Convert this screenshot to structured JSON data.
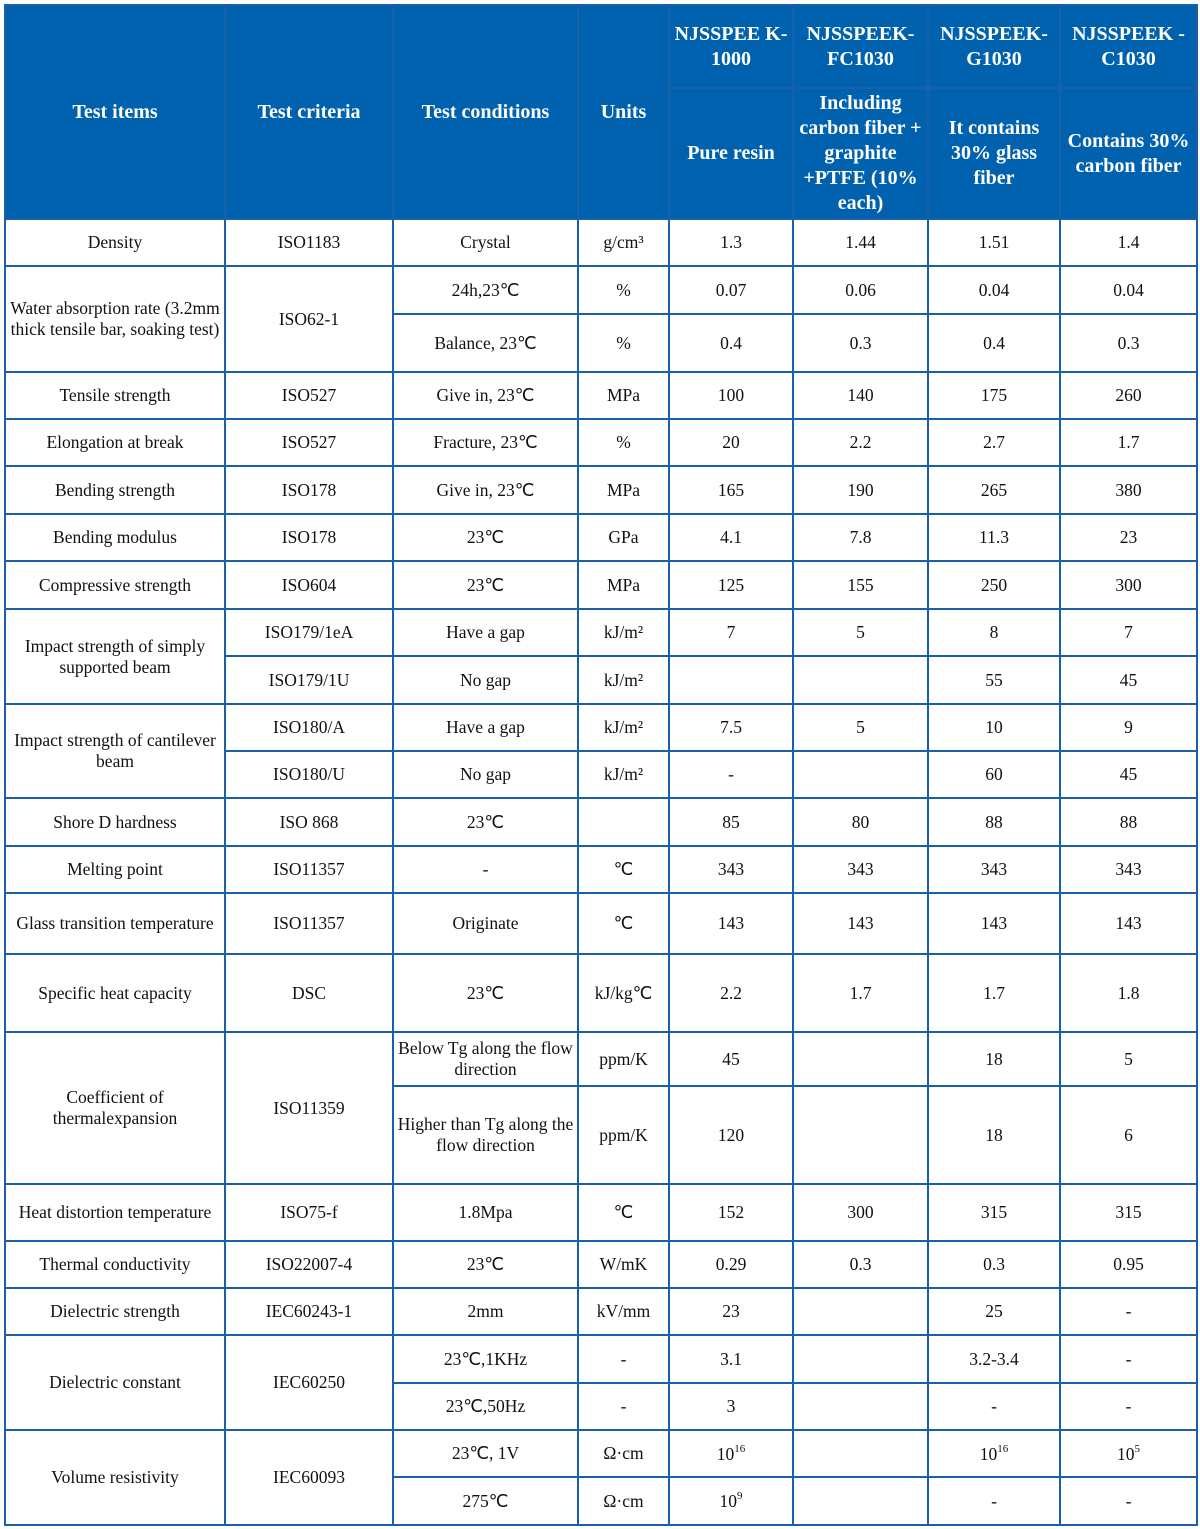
{
  "header": {
    "test_items": "Test items",
    "test_criteria": "Test criteria",
    "test_conditions": "Test conditions",
    "units": "Units",
    "products": [
      {
        "name": "NJSSPEEK-1000",
        "name_display": "NJSSPEE K-1000",
        "description": "Pure resin"
      },
      {
        "name": "NJSSPEEK-FC1030",
        "name_display": "NJSSPEEK- FC1030",
        "description": "Including carbon fiber + graphite +PTFE (10% each)"
      },
      {
        "name": "NJSSPEEK-G1030",
        "name_display": "NJSSPEEK- G1030",
        "description": "It contains 30% glass fiber"
      },
      {
        "name": "NJSSPEEK-C1030",
        "name_display": "NJSSPEEK -C1030",
        "description": "Contains 30% carbon fiber"
      }
    ]
  },
  "rows": [
    {
      "cells": [
        {
          "t": "Density"
        },
        {
          "t": "ISO1183"
        },
        {
          "t": "Crystal"
        },
        {
          "t": "g/cm³"
        },
        {
          "t": "1.3"
        },
        {
          "t": "1.44"
        },
        {
          "t": "1.51"
        },
        {
          "t": "1.4"
        }
      ]
    },
    {
      "cells": [
        {
          "t": "Water absorption rate (3.2mm thick tensile bar, soaking test)",
          "rs": 2
        },
        {
          "t": "ISO62-1",
          "rs": 2
        },
        {
          "t": "24h,23℃"
        },
        {
          "t": "%"
        },
        {
          "t": "0.07"
        },
        {
          "t": "0.06"
        },
        {
          "t": "0.04"
        },
        {
          "t": "0.04"
        }
      ]
    },
    {
      "cells": [
        {
          "t": "Balance, 23℃"
        },
        {
          "t": "%"
        },
        {
          "t": "0.4"
        },
        {
          "t": "0.3"
        },
        {
          "t": "0.4"
        },
        {
          "t": "0.3"
        }
      ]
    },
    {
      "cells": [
        {
          "t": "Tensile strength"
        },
        {
          "t": "ISO527"
        },
        {
          "t": "Give in, 23℃"
        },
        {
          "t": "MPa"
        },
        {
          "t": "100"
        },
        {
          "t": "140"
        },
        {
          "t": "175"
        },
        {
          "t": "260"
        }
      ]
    },
    {
      "cells": [
        {
          "t": "Elongation at break"
        },
        {
          "t": "ISO527"
        },
        {
          "t": "Fracture, 23℃"
        },
        {
          "t": "%"
        },
        {
          "t": "20"
        },
        {
          "t": "2.2"
        },
        {
          "t": "2.7"
        },
        {
          "t": "1.7"
        }
      ]
    },
    {
      "cells": [
        {
          "t": "Bending strength"
        },
        {
          "t": "ISO178"
        },
        {
          "t": "Give in, 23℃"
        },
        {
          "t": "MPa"
        },
        {
          "t": "165"
        },
        {
          "t": "190"
        },
        {
          "t": "265"
        },
        {
          "t": "380"
        }
      ]
    },
    {
      "cells": [
        {
          "t": "Bending modulus"
        },
        {
          "t": "ISO178"
        },
        {
          "t": "23℃"
        },
        {
          "t": "GPa"
        },
        {
          "t": "4.1"
        },
        {
          "t": "7.8"
        },
        {
          "t": "11.3"
        },
        {
          "t": "23"
        }
      ]
    },
    {
      "cells": [
        {
          "t": "Compressive strength"
        },
        {
          "t": "ISO604"
        },
        {
          "t": "23℃"
        },
        {
          "t": "MPa"
        },
        {
          "t": "125"
        },
        {
          "t": "155"
        },
        {
          "t": "250"
        },
        {
          "t": "300"
        }
      ]
    },
    {
      "cells": [
        {
          "t": "Impact strength of simply supported beam",
          "rs": 2
        },
        {
          "t": "ISO179/1eA"
        },
        {
          "t": "Have a gap"
        },
        {
          "t": "kJ/m²"
        },
        {
          "t": "7"
        },
        {
          "t": "5"
        },
        {
          "t": "8"
        },
        {
          "t": "7"
        }
      ]
    },
    {
      "cells": [
        {
          "t": "ISO179/1U"
        },
        {
          "t": "No gap"
        },
        {
          "t": "kJ/m²"
        },
        {
          "t": ""
        },
        {
          "t": ""
        },
        {
          "t": "55"
        },
        {
          "t": "45"
        }
      ]
    },
    {
      "cells": [
        {
          "t": "Impact strength of cantilever beam",
          "rs": 2
        },
        {
          "t": "ISO180/A"
        },
        {
          "t": "Have a gap"
        },
        {
          "t": "kJ/m²"
        },
        {
          "t": "7.5"
        },
        {
          "t": "5"
        },
        {
          "t": "10"
        },
        {
          "t": "9"
        }
      ]
    },
    {
      "cells": [
        {
          "t": "ISO180/U"
        },
        {
          "t": "No gap"
        },
        {
          "t": "kJ/m²"
        },
        {
          "t": "-"
        },
        {
          "t": ""
        },
        {
          "t": "60"
        },
        {
          "t": "45"
        }
      ]
    },
    {
      "cells": [
        {
          "t": "Shore D hardness"
        },
        {
          "t": "ISO 868"
        },
        {
          "t": "23℃"
        },
        {
          "t": ""
        },
        {
          "t": "85"
        },
        {
          "t": "80"
        },
        {
          "t": "88"
        },
        {
          "t": "88"
        }
      ]
    },
    {
      "cells": [
        {
          "t": "Melting point"
        },
        {
          "t": "ISO11357"
        },
        {
          "t": "-"
        },
        {
          "t": "℃"
        },
        {
          "t": "343"
        },
        {
          "t": "343"
        },
        {
          "t": "343"
        },
        {
          "t": "343"
        }
      ]
    },
    {
      "cells": [
        {
          "t": "Glass transition temperature"
        },
        {
          "t": "ISO11357"
        },
        {
          "t": "Originate"
        },
        {
          "t": "℃"
        },
        {
          "t": "143"
        },
        {
          "t": "143"
        },
        {
          "t": "143"
        },
        {
          "t": "143"
        }
      ]
    },
    {
      "cells": [
        {
          "t": "Specific heat capacity"
        },
        {
          "t": "DSC"
        },
        {
          "t": "23℃"
        },
        {
          "t": "kJ/kg℃"
        },
        {
          "t": "2.2"
        },
        {
          "t": "1.7"
        },
        {
          "t": "1.7"
        },
        {
          "t": "1.8"
        }
      ]
    },
    {
      "cells": [
        {
          "t": "Coefficient of thermalexpansion",
          "rs": 2
        },
        {
          "t": "ISO11359",
          "rs": 2
        },
        {
          "t": "Below Tg along the flow direction"
        },
        {
          "t": "ppm/K"
        },
        {
          "t": "45"
        },
        {
          "t": ""
        },
        {
          "t": "18"
        },
        {
          "t": "5"
        }
      ]
    },
    {
      "cells": [
        {
          "t": "Higher than Tg along the flow direction"
        },
        {
          "t": "ppm/K"
        },
        {
          "t": "120"
        },
        {
          "t": ""
        },
        {
          "t": "18"
        },
        {
          "t": "6"
        }
      ]
    },
    {
      "cells": [
        {
          "t": "Heat distortion temperature"
        },
        {
          "t": "ISO75-f"
        },
        {
          "t": "1.8Mpa"
        },
        {
          "t": "℃"
        },
        {
          "t": "152"
        },
        {
          "t": "300"
        },
        {
          "t": "315"
        },
        {
          "t": "315"
        }
      ]
    },
    {
      "cells": [
        {
          "t": "Thermal conductivity"
        },
        {
          "t": "ISO22007-4"
        },
        {
          "t": "23℃"
        },
        {
          "t": "W/mK"
        },
        {
          "t": "0.29"
        },
        {
          "t": "0.3"
        },
        {
          "t": "0.3"
        },
        {
          "t": "0.95"
        }
      ]
    },
    {
      "cells": [
        {
          "t": "Dielectric strength"
        },
        {
          "t": "IEC60243-1"
        },
        {
          "t": "2mm"
        },
        {
          "t": "kV/mm"
        },
        {
          "t": "23"
        },
        {
          "t": ""
        },
        {
          "t": "25"
        },
        {
          "t": "-"
        }
      ]
    },
    {
      "cells": [
        {
          "t": "Dielectric constant",
          "rs": 2
        },
        {
          "t": "IEC60250",
          "rs": 2
        },
        {
          "t": "23℃,1KHz"
        },
        {
          "t": "-"
        },
        {
          "t": "3.1"
        },
        {
          "t": ""
        },
        {
          "t": "3.2-3.4"
        },
        {
          "t": "-"
        }
      ]
    },
    {
      "cells": [
        {
          "t": "23℃,50Hz"
        },
        {
          "t": "-"
        },
        {
          "t": "3"
        },
        {
          "t": ""
        },
        {
          "t": "-"
        },
        {
          "t": "-"
        }
      ]
    },
    {
      "cells": [
        {
          "t": "Volume resistivity",
          "rs": 2
        },
        {
          "t": "IEC60093",
          "rs": 2
        },
        {
          "t": "23℃, 1V"
        },
        {
          "t": "Ω·cm"
        },
        {
          "t": "10",
          "sup": "16"
        },
        {
          "t": ""
        },
        {
          "t": "10",
          "sup": "16"
        },
        {
          "t": "10",
          "sup": "5"
        }
      ]
    },
    {
      "cells": [
        {
          "t": "275℃"
        },
        {
          "t": "Ω·cm"
        },
        {
          "t": "10",
          "sup": "9"
        },
        {
          "t": ""
        },
        {
          "t": "-"
        },
        {
          "t": "-"
        }
      ]
    }
  ],
  "colors": {
    "header_bg": "#0062ae",
    "border": "#1a5fa8",
    "header_text": "#ffffff"
  }
}
